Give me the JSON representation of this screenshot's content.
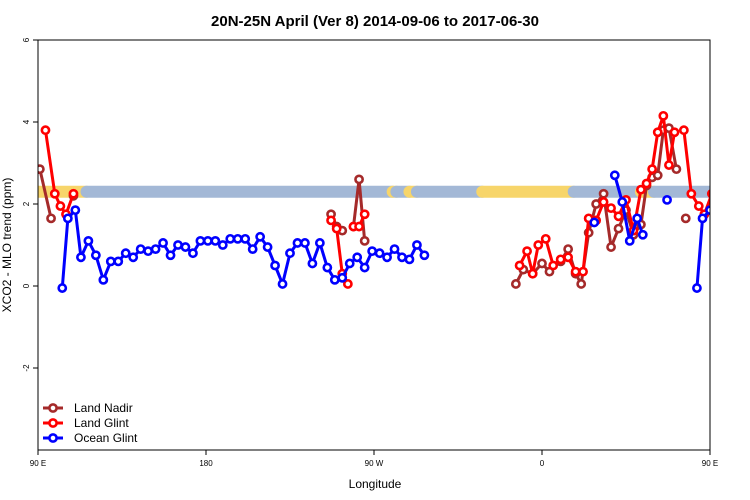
{
  "chart_data": {
    "type": "line",
    "title": "20N-25N April (Ver 8)   2014-09-06 to 2017-06-30",
    "xlabel": "Longitude",
    "ylabel": "XCO2 - MLO trend (ppm)",
    "xlim": [
      -90,
      270
    ],
    "ylim": [
      -4,
      6
    ],
    "x_ticks": [
      {
        "value": -90,
        "label": "90 E"
      },
      {
        "value": 0,
        "label": "180"
      },
      {
        "value": 90,
        "label": "90 W"
      },
      {
        "value": 180,
        "label": "0"
      },
      {
        "value": 270,
        "label": "90 E"
      },
      {
        "value": 360,
        "label": "180"
      }
    ],
    "y_ticks": [
      -2,
      0,
      2,
      4,
      6
    ],
    "legend_position": "bottom-left",
    "band": {
      "y": 2.3,
      "colors": {
        "land": "#f7d56a",
        "ocean": "#a3b8d6"
      },
      "segments": [
        {
          "from": -90,
          "to": -64,
          "type": "land"
        },
        {
          "from": -64,
          "to": 100,
          "type": "ocean"
        },
        {
          "from": 100,
          "to": 102,
          "type": "land"
        },
        {
          "from": 102,
          "to": 109,
          "type": "ocean"
        },
        {
          "from": 109,
          "to": 113,
          "type": "land"
        },
        {
          "from": 113,
          "to": 148,
          "type": "ocean"
        },
        {
          "from": 148,
          "to": 197,
          "type": "land"
        },
        {
          "from": 197,
          "to": 233,
          "type": "ocean"
        },
        {
          "from": 233,
          "to": 240,
          "type": "land"
        },
        {
          "from": 240,
          "to": 360,
          "type": "ocean"
        }
      ]
    },
    "series": [
      {
        "name": "Land Nadir",
        "color": "#a52a2a",
        "segments": [
          [
            [
              -89,
              2.85
            ],
            [
              -83,
              1.65
            ]
          ],
          [
            [
              -71,
              2.2
            ]
          ],
          [
            [
              67,
              1.75
            ],
            [
              70,
              1.45
            ],
            [
              73,
              1.35
            ]
          ],
          [
            [
              79,
              1.45
            ],
            [
              82,
              2.6
            ],
            [
              85,
              1.1
            ]
          ],
          [
            [
              166,
              0.05
            ],
            [
              170,
              0.4
            ],
            [
              175,
              0.3
            ],
            [
              180,
              0.55
            ],
            [
              184,
              0.35
            ],
            [
              190,
              0.6
            ],
            [
              194,
              0.9
            ],
            [
              198,
              0.3
            ],
            [
              201,
              0.05
            ],
            [
              205,
              1.3
            ],
            [
              209,
              2
            ],
            [
              213,
              2.25
            ],
            [
              217,
              0.95
            ],
            [
              221,
              1.4
            ],
            [
              225,
              1.85
            ],
            [
              229,
              1.25
            ],
            [
              233,
              1.5
            ],
            [
              236,
              2.45
            ],
            [
              239,
              2.65
            ],
            [
              242,
              2.7
            ],
            [
              245,
              3.8
            ],
            [
              248,
              3.85
            ],
            [
              252,
              2.85
            ]
          ],
          [
            [
              257,
              1.65
            ]
          ]
        ]
      },
      {
        "name": "Land Glint",
        "color": "#ff0000",
        "segments": [
          [
            [
              -86,
              3.8
            ],
            [
              -81,
              2.25
            ],
            [
              -78,
              1.95
            ],
            [
              -75,
              1.75
            ],
            [
              -71,
              2.25
            ]
          ],
          [
            [
              67,
              1.6
            ],
            [
              70,
              1.4
            ],
            [
              73,
              0.3
            ],
            [
              76,
              0.05
            ]
          ],
          [
            [
              79,
              1.45
            ],
            [
              82,
              1.45
            ],
            [
              85,
              1.75
            ]
          ],
          [
            [
              168,
              0.5
            ],
            [
              172,
              0.85
            ],
            [
              175,
              0.3
            ],
            [
              178,
              1
            ],
            [
              182,
              1.15
            ],
            [
              186,
              0.5
            ],
            [
              190,
              0.65
            ],
            [
              194,
              0.7
            ],
            [
              198,
              0.35
            ],
            [
              202,
              0.35
            ],
            [
              205,
              1.65
            ],
            [
              209,
              1.6
            ],
            [
              213,
              2.05
            ],
            [
              217,
              1.9
            ],
            [
              221,
              1.7
            ],
            [
              225,
              2.1
            ],
            [
              229,
              1.35
            ],
            [
              233,
              2.35
            ],
            [
              236,
              2.5
            ],
            [
              239,
              2.85
            ],
            [
              242,
              3.75
            ],
            [
              245,
              4.15
            ],
            [
              248,
              2.95
            ],
            [
              251,
              3.75
            ]
          ],
          [
            [
              256,
              3.8
            ],
            [
              260,
              2.25
            ],
            [
              264,
              1.95
            ],
            [
              267,
              1.75
            ],
            [
              271,
              2.25
            ]
          ]
        ]
      },
      {
        "name": "Ocean Glint",
        "color": "#0000ff",
        "segments": [
          [
            [
              -77,
              -0.05
            ],
            [
              -74,
              1.65
            ],
            [
              -70,
              1.85
            ],
            [
              -67,
              0.7
            ],
            [
              -63,
              1.1
            ],
            [
              -59,
              0.75
            ],
            [
              -55,
              0.15
            ],
            [
              -51,
              0.6
            ],
            [
              -47,
              0.6
            ],
            [
              -43,
              0.8
            ],
            [
              -39,
              0.7
            ],
            [
              -35,
              0.9
            ],
            [
              -31,
              0.85
            ],
            [
              -27,
              0.9
            ],
            [
              -23,
              1.05
            ],
            [
              -19,
              0.75
            ],
            [
              -15,
              1
            ],
            [
              -11,
              0.95
            ],
            [
              -7,
              0.8
            ],
            [
              -3,
              1.1
            ],
            [
              1,
              1.1
            ],
            [
              5,
              1.1
            ],
            [
              9,
              1
            ],
            [
              13,
              1.15
            ],
            [
              17,
              1.15
            ],
            [
              21,
              1.15
            ],
            [
              25,
              0.9
            ],
            [
              29,
              1.2
            ],
            [
              33,
              0.95
            ],
            [
              37,
              0.5
            ],
            [
              41,
              0.05
            ],
            [
              45,
              0.8
            ],
            [
              49,
              1.05
            ],
            [
              53,
              1.05
            ],
            [
              57,
              0.55
            ],
            [
              61,
              1.05
            ],
            [
              65,
              0.45
            ],
            [
              69,
              0.15
            ],
            [
              73,
              0.2
            ],
            [
              77,
              0.55
            ],
            [
              81,
              0.7
            ],
            [
              85,
              0.45
            ],
            [
              89,
              0.85
            ],
            [
              93,
              0.8
            ],
            [
              97,
              0.7
            ],
            [
              101,
              0.9
            ],
            [
              105,
              0.7
            ],
            [
              109,
              0.65
            ],
            [
              113,
              1
            ],
            [
              117,
              0.75
            ]
          ],
          [
            [
              208,
              1.55
            ]
          ],
          [
            [
              219,
              2.7
            ],
            [
              223,
              2.05
            ],
            [
              227,
              1.1
            ],
            [
              231,
              1.65
            ],
            [
              234,
              1.25
            ]
          ],
          [
            [
              247,
              2.1
            ]
          ],
          [
            [
              263,
              -0.05
            ],
            [
              266,
              1.65
            ],
            [
              270,
              1.85
            ]
          ]
        ]
      }
    ]
  }
}
